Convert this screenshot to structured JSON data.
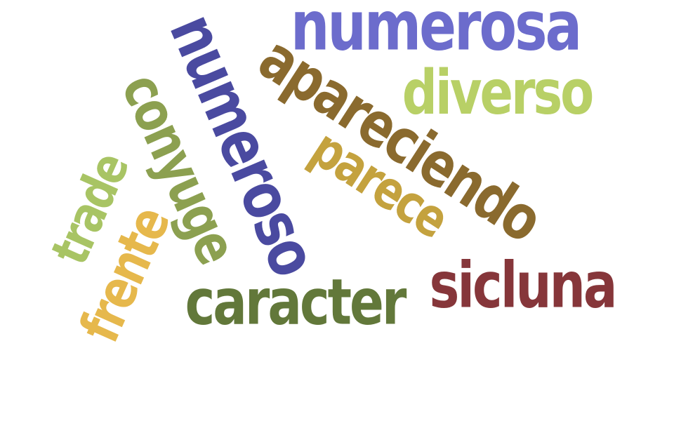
{
  "words": {
    "numerosa": {
      "text": "numerosa",
      "color": "#6c6ccc"
    },
    "diverso": {
      "text": "diverso",
      "color": "#b8d066"
    },
    "apareciendo": {
      "text": "apareciendo",
      "color": "#8a6a2e"
    },
    "parece": {
      "text": "parece",
      "color": "#c4a23e"
    },
    "numeroso": {
      "text": "numeroso",
      "color": "#4a4aa0"
    },
    "conyuge": {
      "text": "conyuge",
      "color": "#8ca050"
    },
    "trade": {
      "text": "trade",
      "color": "#a8c464"
    },
    "frente": {
      "text": "frente",
      "color": "#e6b84c"
    },
    "caracter": {
      "text": "caracter",
      "color": "#62783a"
    },
    "sicluna": {
      "text": "sicluna",
      "color": "#86363a"
    }
  }
}
